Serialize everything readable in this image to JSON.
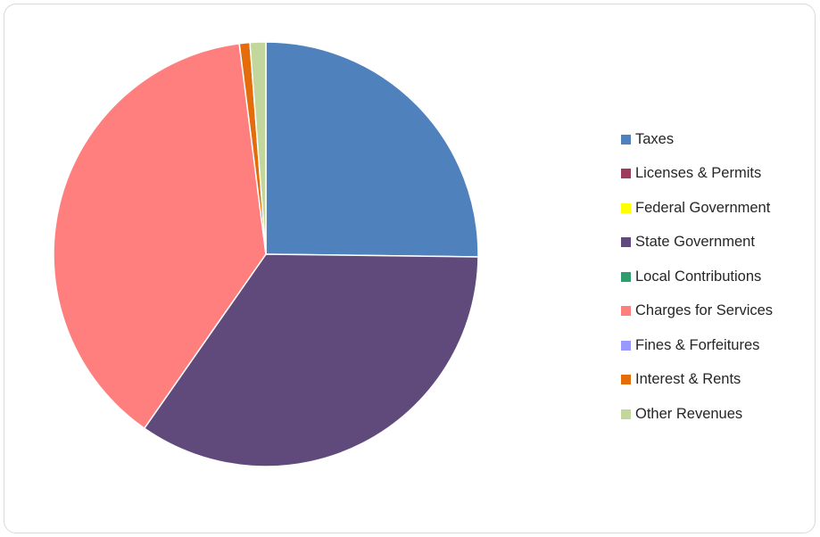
{
  "chart_data": {
    "type": "pie",
    "title": "",
    "start_angle_deg": 0,
    "direction": "clockwise",
    "legend_position": "right",
    "slices": [
      {
        "name": "Taxes",
        "value": 25.2,
        "color": "#4f81bd"
      },
      {
        "name": "Licenses & Permits",
        "value": 0.0,
        "color": "#9b3c5f"
      },
      {
        "name": "Federal Government",
        "value": 0.0,
        "color": "#ffff00"
      },
      {
        "name": "State Government",
        "value": 34.5,
        "color": "#604a7b"
      },
      {
        "name": "Local Contributions",
        "value": 0.0,
        "color": "#2e9e6e"
      },
      {
        "name": "Charges for Services",
        "value": 38.3,
        "color": "#ff7f7f"
      },
      {
        "name": "Fines & Forfeitures",
        "value": 0.0,
        "color": "#9999ff"
      },
      {
        "name": "Interest & Rents",
        "value": 0.8,
        "color": "#e46c0a"
      },
      {
        "name": "Other Revenues",
        "value": 1.2,
        "color": "#c3d69b"
      }
    ]
  }
}
